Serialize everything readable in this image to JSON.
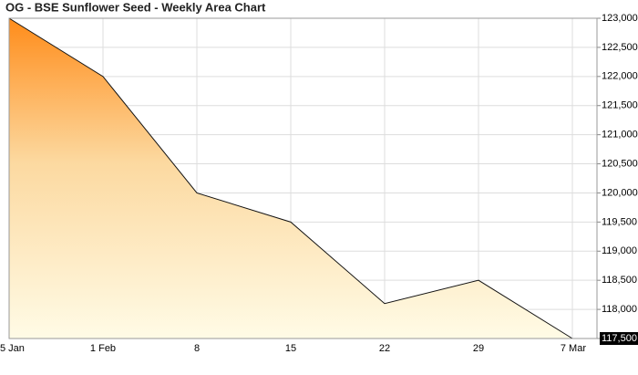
{
  "chart_data": {
    "type": "area",
    "title": "OG - BSE Sunflower Seed - Weekly Area Chart",
    "categories": [
      "5 Jan",
      "1 Feb",
      "8",
      "15",
      "22",
      "29",
      "7 Mar"
    ],
    "values": [
      123000,
      122000,
      120000,
      119500,
      118100,
      118500,
      117500
    ],
    "color": "#ff8c1a",
    "ylim": [
      117500,
      123000
    ],
    "yticks": [
      {
        "value": 117500,
        "label": "117,500"
      },
      {
        "value": 118000,
        "label": "118,000"
      },
      {
        "value": 118500,
        "label": "118,500"
      },
      {
        "value": 119000,
        "label": "119,000"
      },
      {
        "value": 119500,
        "label": "119,500"
      },
      {
        "value": 120000,
        "label": "120,000"
      },
      {
        "value": 120500,
        "label": "120,500"
      },
      {
        "value": 121000,
        "label": "121,000"
      },
      {
        "value": 121500,
        "label": "121,500"
      },
      {
        "value": 122000,
        "label": "122,000"
      },
      {
        "value": 122500,
        "label": "122,500"
      },
      {
        "value": 123000,
        "label": "123,000"
      }
    ],
    "grid": true
  }
}
